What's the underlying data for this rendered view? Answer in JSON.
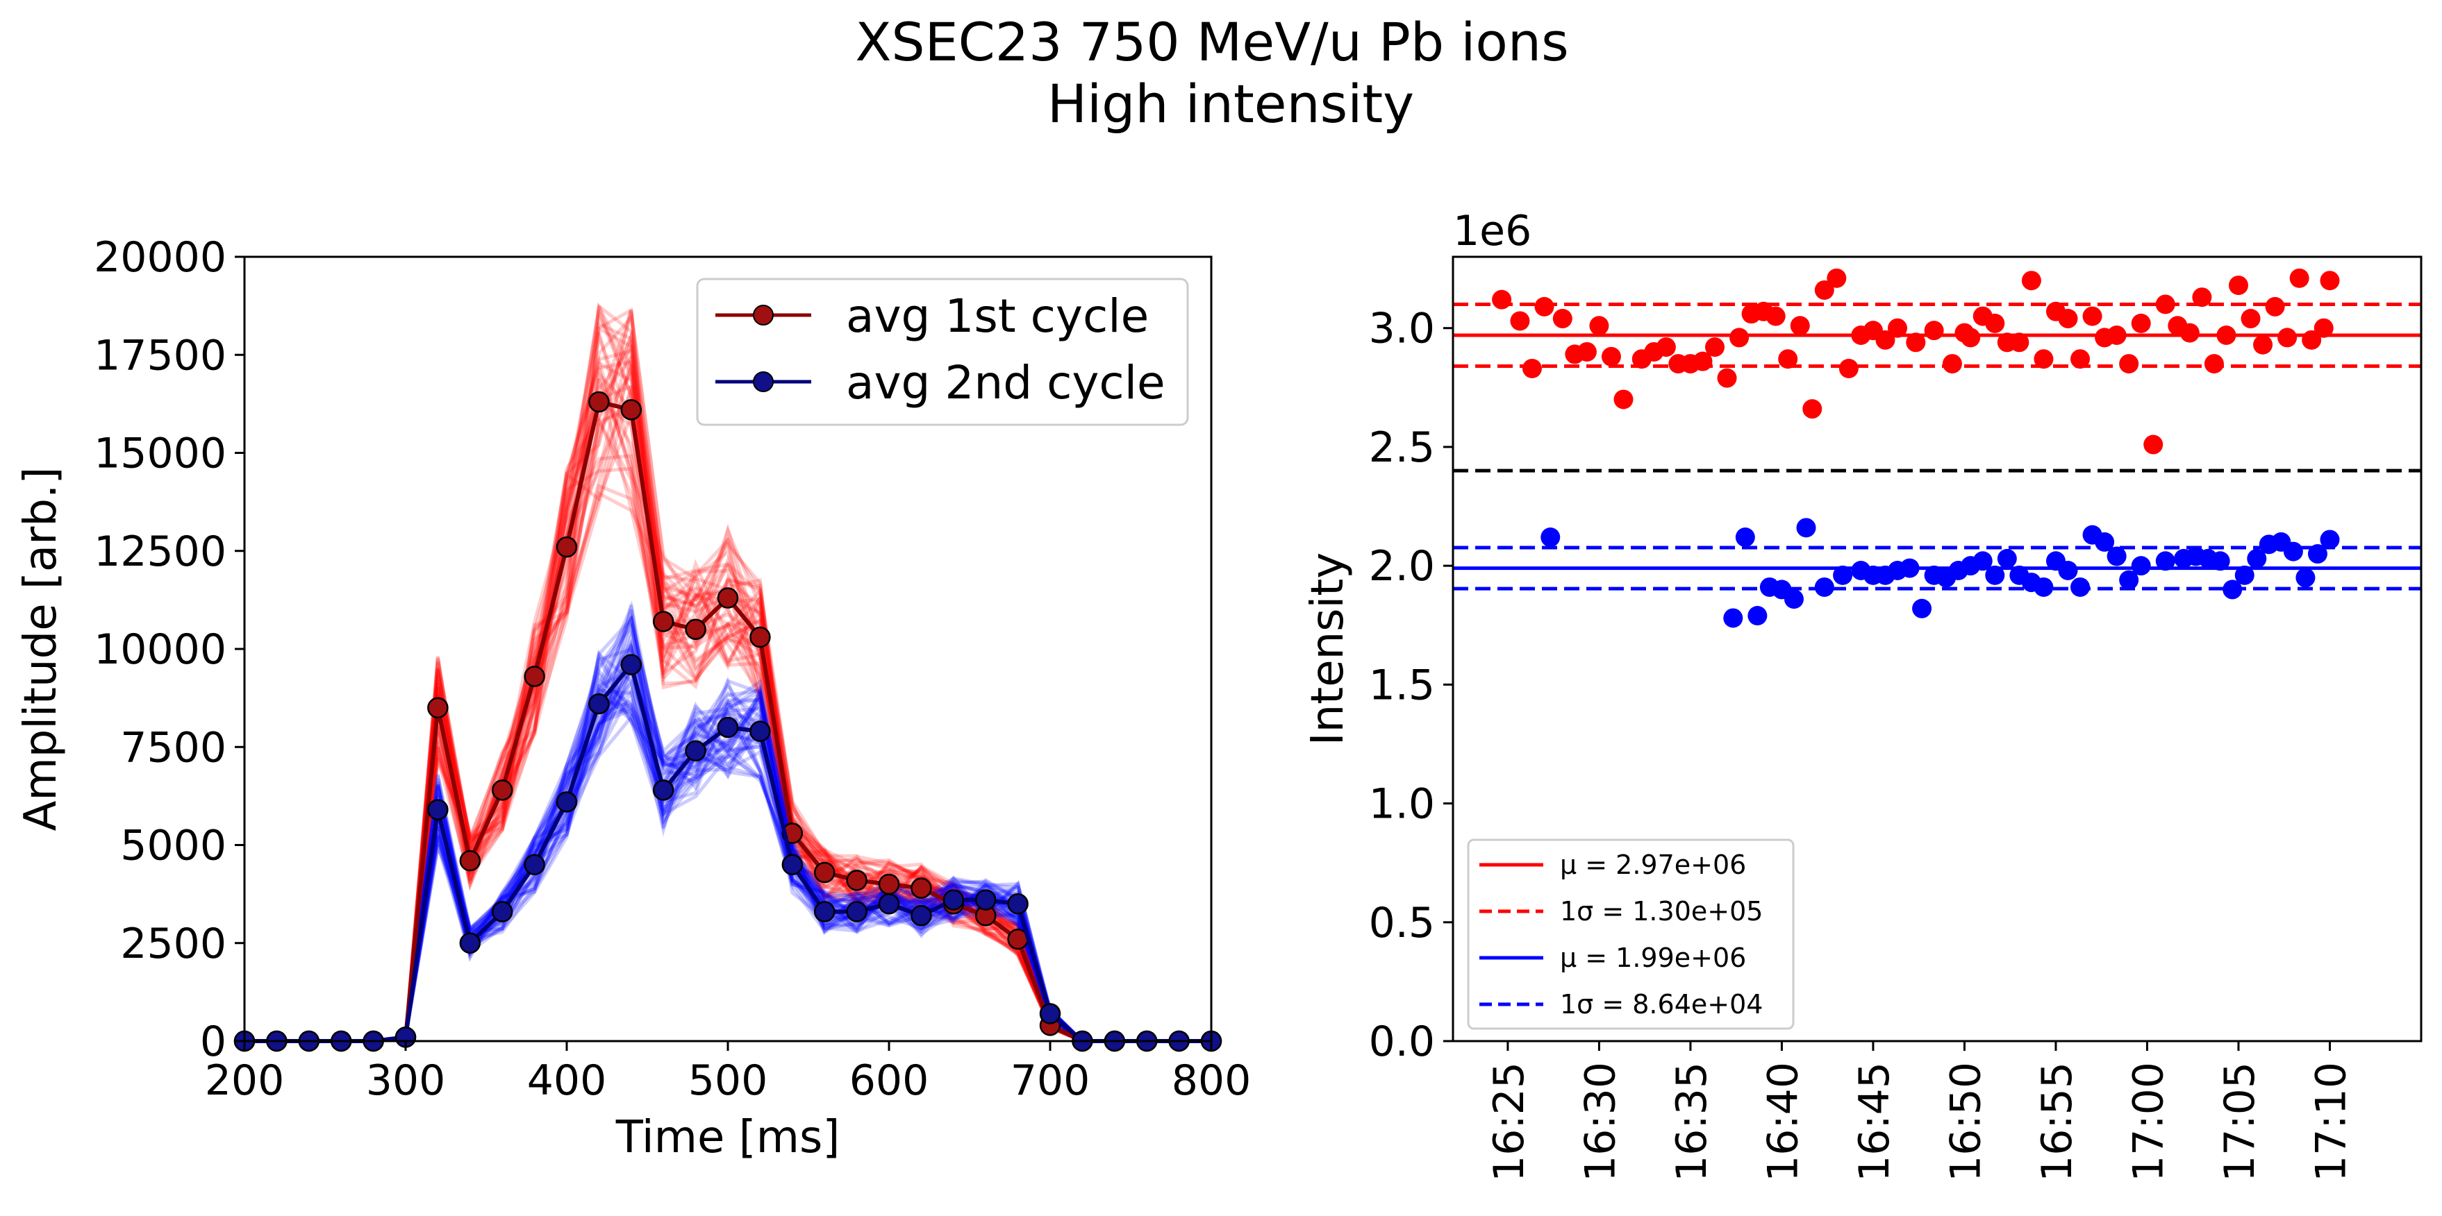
{
  "figure": {
    "title_line1": "XSEC23 750 MeV/u Pb ions",
    "title_line2": "High intensity"
  },
  "chart_data": [
    {
      "type": "line",
      "xlabel": "Time [ms]",
      "ylabel": "Amplitude [arb.]",
      "xlim": [
        200,
        800
      ],
      "ylim": [
        0,
        20000
      ],
      "xticks": [
        "200",
        "300",
        "400",
        "500",
        "600",
        "700",
        "800"
      ],
      "yticks": [
        "0",
        "2500",
        "5000",
        "7500",
        "10000",
        "12500",
        "15000",
        "17500",
        "20000"
      ],
      "x": [
        200,
        220,
        240,
        260,
        280,
        300,
        320,
        340,
        360,
        380,
        400,
        420,
        440,
        460,
        480,
        500,
        520,
        540,
        560,
        580,
        600,
        620,
        640,
        660,
        680,
        700,
        720,
        740,
        760,
        780,
        800
      ],
      "series": [
        {
          "name": "avg 1st cycle",
          "line_color": "#8b0000",
          "marker_color": "#a01010",
          "values": [
            0,
            0,
            0,
            0,
            0,
            100,
            8500,
            4600,
            6400,
            9300,
            12600,
            16300,
            16100,
            10700,
            10500,
            11300,
            10300,
            5300,
            4300,
            4100,
            4000,
            3900,
            3500,
            3200,
            2600,
            400,
            0,
            0,
            0,
            0,
            0
          ]
        },
        {
          "name": "avg 2nd cycle",
          "line_color": "#00007a",
          "marker_color": "#10108a",
          "values": [
            0,
            0,
            0,
            0,
            0,
            100,
            5900,
            2500,
            3300,
            4500,
            6100,
            8600,
            9600,
            6400,
            7400,
            8000,
            7900,
            4500,
            3300,
            3300,
            3500,
            3200,
            3600,
            3600,
            3500,
            700,
            0,
            0,
            0,
            0,
            0
          ]
        }
      ],
      "legend_position": "upper right",
      "background_traces": {
        "first_cycle_color": "#ff0000",
        "second_cycle_color": "#0000ff"
      }
    },
    {
      "type": "scatter",
      "xlabel": "",
      "ylabel": "Intensity",
      "y_scale_label": "1e6",
      "ylim": [
        0,
        3.3
      ],
      "xlim": [
        "16:22",
        "17:15"
      ],
      "yticks": [
        "0.0",
        "0.5",
        "1.0",
        "1.5",
        "2.0",
        "2.5",
        "3.0"
      ],
      "xticks": [
        "16:25",
        "16:30",
        "16:35",
        "16:40",
        "16:45",
        "16:50",
        "16:55",
        "17:00",
        "17:05",
        "17:10"
      ],
      "threshold": 2.4,
      "threshold_color": "#000000",
      "series": [
        {
          "color": "#ff0000",
          "mean": 2.97,
          "sigma": 0.13,
          "x": [
            "16:24:40",
            "16:25:40",
            "16:26:20",
            "16:27:00",
            "16:28:00",
            "16:28:40",
            "16:29:20",
            "16:30:00",
            "16:30:40",
            "16:31:20",
            "16:32:20",
            "16:33:00",
            "16:33:40",
            "16:34:20",
            "16:35:00",
            "16:35:40",
            "16:36:20",
            "16:37:00",
            "16:37:40",
            "16:38:20",
            "16:39:00",
            "16:39:40",
            "16:40:20",
            "16:41:00",
            "16:41:40",
            "16:42:20",
            "16:43:00",
            "16:43:40",
            "16:44:20",
            "16:45:00",
            "16:45:40",
            "16:46:20",
            "16:47:20",
            "16:48:20",
            "16:49:20",
            "16:50:00",
            "16:50:20",
            "16:51:00",
            "16:51:40",
            "16:52:20",
            "16:53:00",
            "16:53:40",
            "16:54:20",
            "16:55:00",
            "16:55:40",
            "16:56:20",
            "16:57:00",
            "16:57:40",
            "16:58:20",
            "16:59:00",
            "16:59:40",
            "17:00:20",
            "17:01:00",
            "17:01:40",
            "17:02:20",
            "17:03:00",
            "17:03:40",
            "17:04:20",
            "17:05:00",
            "17:05:40",
            "17:06:20",
            "17:07:00",
            "17:07:40",
            "17:08:20",
            "17:09:00",
            "17:09:40",
            "17:10:00"
          ],
          "y": [
            3.12,
            3.03,
            2.83,
            3.09,
            3.04,
            2.89,
            2.9,
            3.01,
            2.88,
            2.7,
            2.87,
            2.9,
            2.92,
            2.85,
            2.85,
            2.86,
            2.92,
            2.79,
            2.96,
            3.06,
            3.07,
            3.05,
            2.87,
            3.01,
            2.66,
            3.16,
            3.21,
            2.83,
            2.97,
            2.99,
            2.95,
            3.0,
            2.94,
            2.99,
            2.85,
            2.98,
            2.96,
            3.05,
            3.02,
            2.94,
            2.94,
            3.2,
            2.87,
            3.07,
            3.04,
            2.87,
            3.05,
            2.96,
            2.97,
            2.85,
            3.02,
            2.51,
            3.1,
            3.01,
            2.98,
            3.13,
            2.85,
            2.97,
            3.18,
            3.04,
            2.93,
            3.09,
            2.96,
            3.21,
            2.95,
            3.0,
            3.2
          ]
        },
        {
          "color": "#0000ff",
          "mean": 1.99,
          "sigma": 0.0864,
          "x": [
            "16:27:20",
            "16:37:20",
            "16:38:00",
            "16:38:40",
            "16:39:20",
            "16:40:00",
            "16:40:40",
            "16:41:20",
            "16:42:20",
            "16:43:20",
            "16:44:20",
            "16:45:00",
            "16:45:40",
            "16:46:20",
            "16:47:00",
            "16:47:40",
            "16:48:20",
            "16:49:00",
            "16:49:40",
            "16:50:20",
            "16:51:00",
            "16:51:40",
            "16:52:20",
            "16:53:00",
            "16:53:40",
            "16:54:20",
            "16:55:00",
            "16:55:40",
            "16:56:20",
            "16:57:00",
            "16:57:40",
            "16:58:20",
            "16:59:00",
            "16:59:40",
            "17:01:00",
            "17:02:00",
            "17:02:40",
            "17:03:20",
            "17:04:00",
            "17:04:40",
            "17:05:20",
            "17:06:00",
            "17:06:40",
            "17:07:20",
            "17:08:00",
            "17:08:40",
            "17:09:20",
            "17:10:00"
          ],
          "y": [
            2.12,
            1.78,
            2.12,
            1.79,
            1.91,
            1.9,
            1.86,
            2.16,
            1.91,
            1.96,
            1.98,
            1.96,
            1.96,
            1.98,
            1.99,
            1.82,
            1.96,
            1.95,
            1.98,
            2.0,
            2.02,
            1.96,
            2.03,
            1.96,
            1.93,
            1.91,
            2.02,
            1.98,
            1.91,
            2.13,
            2.1,
            2.04,
            1.94,
            2.0,
            2.02,
            2.03,
            2.04,
            2.03,
            2.02,
            1.9,
            1.96,
            2.03,
            2.09,
            2.1,
            2.06,
            1.95,
            2.05,
            2.11
          ]
        }
      ],
      "legend_entries": [
        {
          "text": "μ = 2.97e+06",
          "color": "#ff0000",
          "style": "solid"
        },
        {
          "text": "1σ = 1.30e+05",
          "color": "#ff0000",
          "style": "dashed"
        },
        {
          "text": "μ = 1.99e+06",
          "color": "#0000ff",
          "style": "solid"
        },
        {
          "text": "1σ = 8.64e+04",
          "color": "#0000ff",
          "style": "dashed"
        }
      ],
      "legend_position": "lower left"
    }
  ]
}
